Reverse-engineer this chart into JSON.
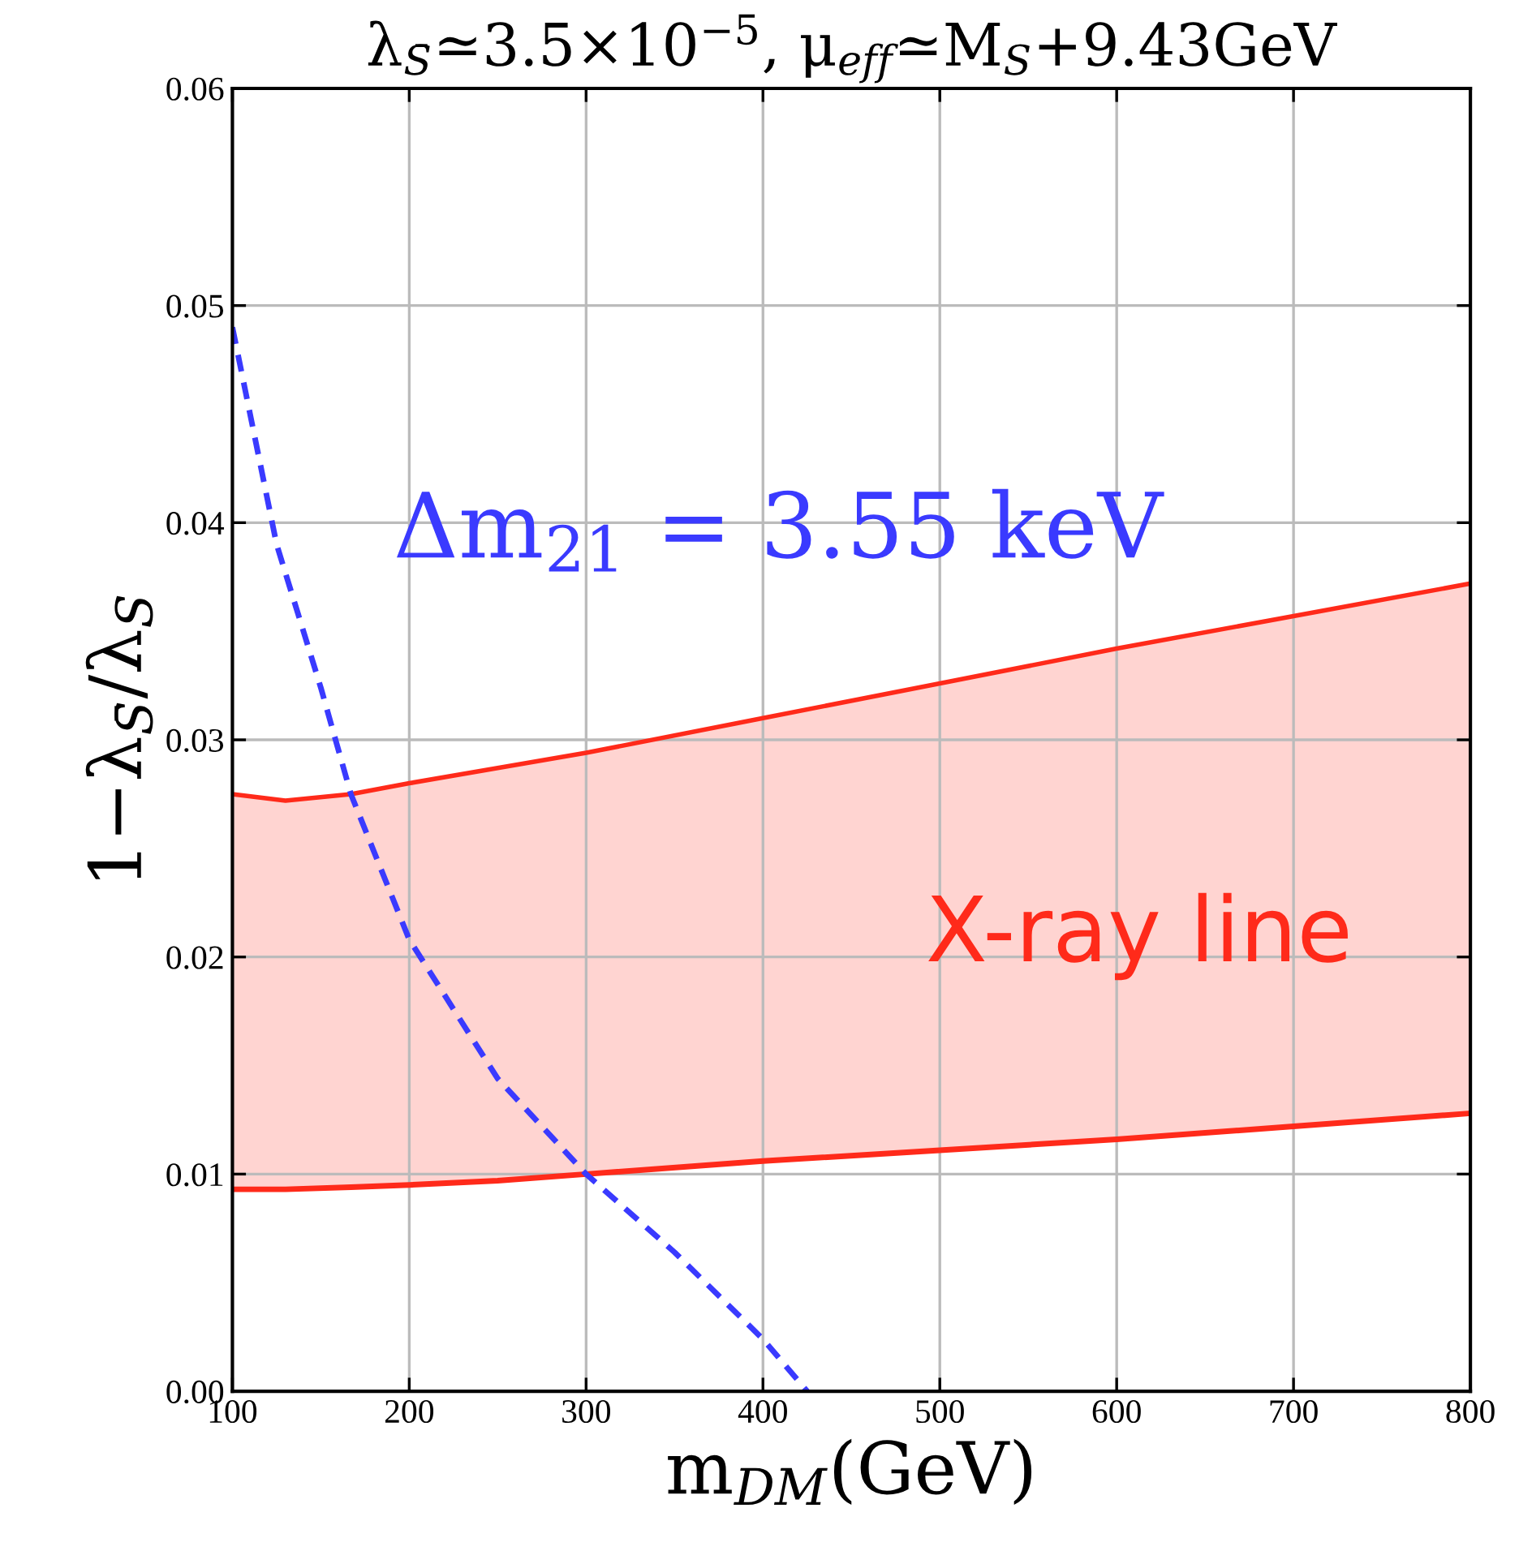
{
  "chart_data": {
    "type": "line",
    "title": "λ$_{S̄}$≃3.5×10$^{−5}$, μ$_{eff}$≃M$_{S}$+9.43GeV",
    "xlabel": "m$_{DM}$(GeV)",
    "ylabel": "1−λ$_{S̄}$/λ$_{S}$",
    "annotations": [
      "Δm$_{21}$ = 3.55 keV",
      "X-ray line"
    ],
    "xlim": [
      100,
      800
    ],
    "ylim": [
      0,
      0.06
    ],
    "xticks": [
      100,
      200,
      300,
      400,
      500,
      600,
      700,
      800
    ],
    "yticks": [
      {
        "value": 0,
        "label": "0.00"
      },
      0.01,
      0.02,
      0.03,
      0.04,
      0.05,
      0.06
    ],
    "grid": true,
    "legend": false,
    "marker": "none",
    "series": [
      {
        "type": "line",
        "color": "#ff2a1a",
        "x": [
          100,
          130,
          167,
          200,
          250,
          300,
          400,
          500,
          600,
          700,
          800
        ],
        "values": [
          0.0093,
          0.0093,
          0.0094,
          0.0095,
          0.0097,
          0.01,
          0.0106,
          0.0111,
          0.0116,
          0.0122,
          0.0128
        ]
      },
      {
        "type": "area",
        "color": "#ff2a1a",
        "x": [
          100,
          130,
          167,
          200,
          250,
          300,
          400,
          500,
          600,
          700,
          800
        ],
        "values": [
          0.0275,
          0.0272,
          0.0275,
          0.028,
          0.0287,
          0.0294,
          0.031,
          0.0326,
          0.0342,
          0.0357,
          0.0372
        ]
      },
      {
        "color": "#3a3aff",
        "line_style": "dashed",
        "x": [
          100,
          125,
          150,
          167,
          200,
          250,
          300,
          350,
          400,
          425
        ],
        "values": [
          0.049,
          0.039,
          0.0324,
          0.0275,
          0.0208,
          0.0144,
          0.01,
          0.0064,
          0.0024,
          0.0
        ]
      }
    ]
  }
}
